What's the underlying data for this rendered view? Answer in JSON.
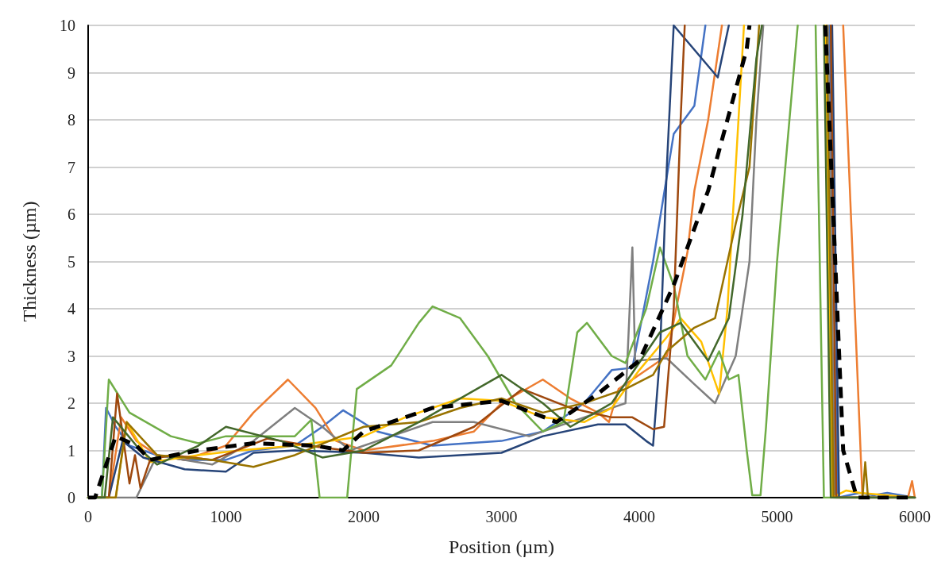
{
  "chart_data": {
    "type": "line",
    "xlabel": "Position (µm)",
    "ylabel": "Thickness (µm)",
    "xlim": [
      0,
      6000
    ],
    "ylim": [
      0,
      10
    ],
    "xticks": [
      0,
      1000,
      2000,
      3000,
      4000,
      5000,
      6000
    ],
    "yticks": [
      0,
      1,
      2,
      3,
      4,
      5,
      6,
      7,
      8,
      9,
      10
    ],
    "grid": "y",
    "marker": "none",
    "line_style": "solid",
    "series": [
      {
        "color": "#4472c4",
        "x": [
          0,
          100,
          130,
          200,
          300,
          500,
          700,
          1000,
          1200,
          1500,
          1700,
          1850,
          2100,
          2500,
          3000,
          3300,
          3600,
          3800,
          3950,
          4100,
          4250,
          4400,
          4480,
          5000,
          5380,
          5440,
          5600,
          5700,
          5800,
          5900,
          6000
        ],
        "values": [
          0,
          0,
          1.9,
          1.5,
          1.1,
          0.9,
          0.8,
          0.8,
          1.0,
          1.1,
          1.5,
          1.85,
          1.4,
          1.1,
          1.2,
          1.4,
          2.0,
          2.7,
          2.75,
          5,
          7.7,
          8.3,
          10,
          null,
          10,
          0,
          0.1,
          0.05,
          0.1,
          0.05,
          0
        ]
      },
      {
        "color": "#ed7d31",
        "x": [
          0,
          150,
          240,
          350,
          500,
          700,
          1000,
          1200,
          1450,
          1650,
          1800,
          2000,
          2500,
          2800,
          3000,
          3300,
          3500,
          3700,
          3780,
          3850,
          4000,
          4200,
          4350,
          4400,
          4500,
          4600,
          5000,
          5480,
          5620,
          5800,
          5950,
          5980,
          6000
        ],
        "values": [
          0,
          0,
          1.7,
          1.2,
          0.9,
          0.8,
          1.1,
          1.8,
          2.5,
          1.9,
          1.2,
          1.0,
          1.2,
          1.4,
          2.0,
          2.5,
          2.1,
          1.8,
          1.6,
          2.3,
          2.6,
          3.0,
          5.2,
          6.5,
          8,
          10,
          null,
          10,
          0,
          0,
          0,
          0.35,
          0
        ]
      },
      {
        "color": "#7f7f7f",
        "x": [
          0,
          350,
          500,
          700,
          900,
          1200,
          1500,
          1700,
          1900,
          2200,
          2500,
          2800,
          3200,
          3600,
          3900,
          3950,
          3970,
          4200,
          4400,
          4550,
          4700,
          4800,
          4850,
          4900,
          5100,
          5370,
          5420,
          6000
        ],
        "values": [
          0,
          0,
          0.9,
          0.8,
          0.7,
          1.2,
          1.9,
          1.5,
          1.0,
          1.3,
          1.6,
          1.6,
          1.3,
          1.7,
          2.0,
          5.3,
          2.9,
          2.95,
          2.4,
          2.0,
          3.0,
          5,
          8,
          10,
          null,
          10,
          0,
          0
        ]
      },
      {
        "color": "#ffc000",
        "x": [
          0,
          200,
          280,
          450,
          800,
          1100,
          1500,
          2000,
          2300,
          2700,
          3000,
          3300,
          3600,
          3800,
          4000,
          4200,
          4300,
          4450,
          4580,
          4640,
          4700,
          4760,
          5000,
          5350,
          5400,
          5500,
          5600,
          6000
        ],
        "values": [
          0,
          0,
          1.6,
          0.75,
          0.9,
          1.0,
          1.1,
          1.3,
          1.7,
          2.1,
          2.05,
          1.7,
          1.6,
          1.9,
          2.7,
          3.4,
          3.8,
          3.3,
          2.2,
          4,
          7,
          10,
          null,
          10,
          0,
          0.15,
          0.1,
          0
        ]
      },
      {
        "color": "#70ad47",
        "x": [
          0,
          100,
          150,
          300,
          600,
          800,
          1000,
          1500,
          1620,
          1680,
          1880,
          1950,
          2200,
          2400,
          2500,
          2700,
          2900,
          3100,
          3300,
          3450,
          3550,
          3620,
          3800,
          3900,
          4050,
          4150,
          4250,
          4350,
          4480,
          4580,
          4650,
          4720,
          4780,
          4820,
          4880,
          4920,
          5000,
          5150,
          5200,
          5280,
          5340,
          6000
        ],
        "values": [
          0,
          0,
          2.5,
          1.8,
          1.3,
          1.15,
          1.3,
          1.3,
          1.65,
          0,
          0,
          2.3,
          2.8,
          3.7,
          4.05,
          3.8,
          3.0,
          2.0,
          1.4,
          1.6,
          3.5,
          3.7,
          3.0,
          2.85,
          4.0,
          5.3,
          4.5,
          3.0,
          2.5,
          3.1,
          2.5,
          2.6,
          1.0,
          0.05,
          0.05,
          1.5,
          5,
          10,
          null,
          10,
          0,
          0
        ]
      },
      {
        "color": "#264478",
        "x": [
          0,
          150,
          250,
          400,
          700,
          1000,
          1200,
          1500,
          2000,
          2400,
          3000,
          3300,
          3700,
          3900,
          4050,
          4100,
          4150,
          4200,
          4250,
          4570,
          4650,
          5000,
          5400,
          5450,
          6000
        ],
        "values": [
          0,
          0,
          1.2,
          0.85,
          0.6,
          0.55,
          0.95,
          1.0,
          0.95,
          0.85,
          0.95,
          1.3,
          1.55,
          1.55,
          1.2,
          1.1,
          3,
          7,
          10,
          8.9,
          10,
          null,
          10,
          0,
          0
        ]
      },
      {
        "color": "#9e480e",
        "x": [
          0,
          150,
          210,
          300,
          340,
          380,
          450,
          600,
          900,
          1300,
          1600,
          2000,
          2400,
          2800,
          3150,
          3500,
          3800,
          3950,
          4100,
          4180,
          4250,
          4300,
          4330,
          5000,
          5390,
          5430,
          6000
        ],
        "values": [
          0,
          0,
          2.2,
          0.3,
          0.9,
          0.2,
          0.8,
          0.9,
          0.8,
          1.25,
          1.1,
          0.95,
          1.0,
          1.5,
          2.3,
          1.9,
          1.7,
          1.7,
          1.45,
          1.5,
          4,
          8,
          10,
          null,
          10,
          0,
          0
        ]
      },
      {
        "color": "#997300",
        "x": [
          0,
          200,
          280,
          500,
          900,
          1200,
          1500,
          2000,
          2400,
          2700,
          3000,
          3300,
          3600,
          3900,
          4100,
          4200,
          4400,
          4550,
          4700,
          4800,
          4870,
          5100,
          5360,
          5410,
          5620,
          5640,
          5660,
          6000
        ],
        "values": [
          0,
          0,
          1.6,
          0.9,
          0.8,
          0.65,
          0.9,
          1.5,
          1.6,
          1.9,
          2.1,
          1.8,
          2.0,
          2.3,
          2.6,
          3.1,
          3.6,
          3.8,
          5.8,
          7.0,
          10,
          null,
          10,
          0,
          0,
          0.75,
          0,
          0
        ]
      },
      {
        "color": "#43682b",
        "x": [
          0,
          120,
          180,
          350,
          500,
          800,
          1000,
          1400,
          1700,
          2000,
          2400,
          3000,
          3300,
          3500,
          3800,
          4150,
          4300,
          4500,
          4650,
          4750,
          4850,
          4890,
          5100,
          5340,
          5390,
          6000
        ],
        "values": [
          0,
          0,
          1.7,
          1.1,
          0.7,
          1.1,
          1.5,
          1.2,
          0.85,
          1.0,
          1.6,
          2.6,
          2.0,
          1.5,
          2.0,
          3.5,
          3.7,
          2.9,
          3.8,
          6,
          9.3,
          10,
          null,
          10,
          0,
          0
        ]
      },
      {
        "color": "#000000",
        "line_style": "dashed",
        "x": [
          0,
          50,
          200,
          350,
          450,
          800,
          1200,
          1650,
          1850,
          2000,
          2500,
          3000,
          3400,
          3700,
          4000,
          4250,
          4500,
          4780,
          4800,
          5100,
          5350,
          5480,
          5580,
          6000
        ],
        "values": [
          0,
          0,
          1.3,
          1.1,
          0.8,
          1.0,
          1.15,
          1.1,
          1.0,
          1.4,
          1.9,
          2.05,
          1.6,
          2.2,
          2.9,
          4.5,
          6.5,
          9.5,
          10,
          null,
          10,
          1.0,
          0,
          0
        ]
      }
    ]
  }
}
